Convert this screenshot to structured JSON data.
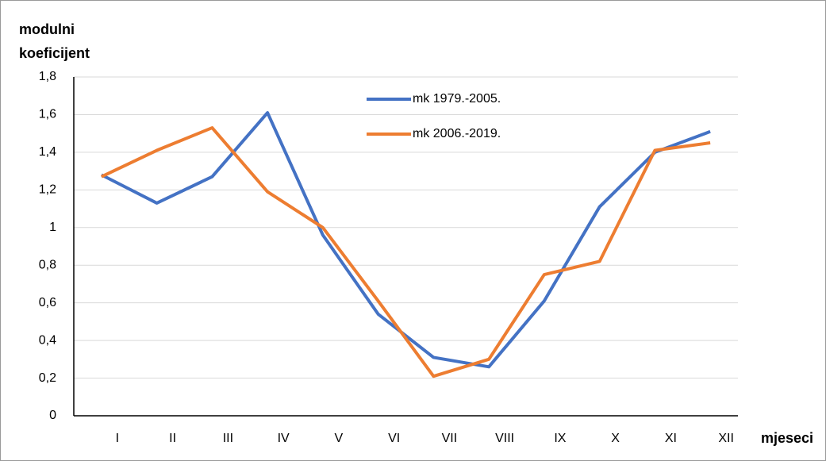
{
  "chart_data": {
    "type": "line",
    "y_label": "modulni koeficijent",
    "x_label": "mjeseci",
    "categories": [
      "I",
      "II",
      "III",
      "IV",
      "V",
      "VI",
      "VII",
      "VIII",
      "IX",
      "X",
      "XI",
      "XII"
    ],
    "series": [
      {
        "name": "mk 1979.-2005.",
        "color": "#4472c4",
        "values": [
          1.28,
          1.13,
          1.27,
          1.61,
          0.96,
          0.54,
          0.31,
          0.26,
          0.61,
          1.11,
          1.4,
          1.51
        ]
      },
      {
        "name": "mk 2006.-2019.",
        "color": "#ed7d31",
        "values": [
          1.27,
          1.41,
          1.53,
          1.19,
          1.0,
          0.61,
          0.21,
          0.3,
          0.75,
          0.82,
          1.41,
          1.45
        ]
      }
    ],
    "ylim": [
      0,
      1.8
    ],
    "yticks": [
      0,
      {
        "value": 0.2,
        "label": "0,2"
      },
      {
        "value": 0.4,
        "label": "0,4"
      },
      {
        "value": 0.6,
        "label": "0,6"
      },
      {
        "value": 0.8,
        "label": "0,8"
      },
      1,
      {
        "value": 1.2,
        "label": "1,2"
      },
      {
        "value": 1.4,
        "label": "1,4"
      },
      {
        "value": 1.6,
        "label": "1,6"
      },
      {
        "value": 1.8,
        "label": "1,8"
      }
    ],
    "grid": true
  }
}
